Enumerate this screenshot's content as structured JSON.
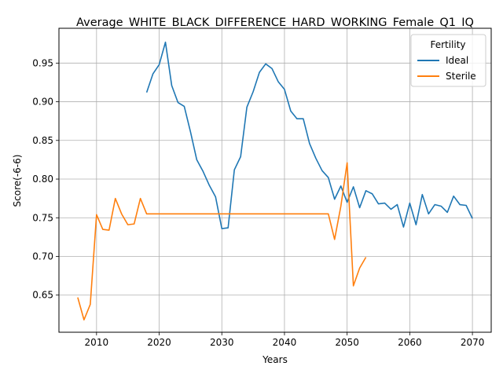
{
  "chart_data": {
    "type": "line",
    "title": "Average_WHITE_BLACK_DIFFERENCE_HARD_WORKING_Female_Q1_IQ",
    "xlabel": "Years",
    "ylabel": "Score(-6-6)",
    "xlim": [
      2004,
      2073
    ],
    "ylim": [
      0.602,
      0.995
    ],
    "xticks": [
      2010,
      2020,
      2030,
      2040,
      2050,
      2060,
      2070
    ],
    "yticks": [
      0.65,
      0.7,
      0.75,
      0.8,
      0.85,
      0.9,
      0.95
    ],
    "ytick_labels": [
      "0.65",
      "0.70",
      "0.75",
      "0.80",
      "0.85",
      "0.90",
      "0.95"
    ],
    "grid": true,
    "legend": {
      "title": "Fertility",
      "position": "top-right"
    },
    "series": [
      {
        "name": "Ideal",
        "color": "#1f77b4",
        "x": [
          2018,
          2019,
          2020,
          2021,
          2022,
          2023,
          2024,
          2025,
          2026,
          2027,
          2028,
          2029,
          2030,
          2031,
          2032,
          2033,
          2034,
          2035,
          2036,
          2037,
          2038,
          2039,
          2040,
          2041,
          2042,
          2043,
          2044,
          2045,
          2046,
          2047,
          2048,
          2049,
          2050,
          2051,
          2052,
          2053,
          2054,
          2055,
          2056,
          2057,
          2058,
          2059,
          2060,
          2061,
          2062,
          2063,
          2064,
          2065,
          2066,
          2067,
          2068,
          2069,
          2070
        ],
        "y": [
          0.912,
          0.936,
          0.948,
          0.977,
          0.921,
          0.899,
          0.894,
          0.861,
          0.825,
          0.81,
          0.792,
          0.777,
          0.736,
          0.737,
          0.812,
          0.829,
          0.893,
          0.913,
          0.938,
          0.949,
          0.943,
          0.926,
          0.916,
          0.888,
          0.878,
          0.878,
          0.846,
          0.827,
          0.811,
          0.802,
          0.774,
          0.791,
          0.77,
          0.79,
          0.763,
          0.785,
          0.781,
          0.768,
          0.769,
          0.761,
          0.767,
          0.738,
          0.769,
          0.741,
          0.78,
          0.755,
          0.767,
          0.765,
          0.757,
          0.778,
          0.767,
          0.766,
          0.749
        ]
      },
      {
        "name": "Sterile",
        "color": "#ff7f0e",
        "x": [
          2007,
          2008,
          2009,
          2010,
          2011,
          2012,
          2013,
          2014,
          2015,
          2016,
          2017,
          2018,
          2019,
          2020,
          2021,
          2022,
          2023,
          2024,
          2025,
          2026,
          2027,
          2028,
          2029,
          2030,
          2031,
          2032,
          2033,
          2034,
          2035,
          2036,
          2037,
          2038,
          2039,
          2040,
          2041,
          2042,
          2043,
          2044,
          2045,
          2046,
          2047,
          2048,
          2049,
          2050,
          2051,
          2052,
          2053
        ],
        "y": [
          0.647,
          0.618,
          0.638,
          0.754,
          0.735,
          0.734,
          0.775,
          0.755,
          0.741,
          0.742,
          0.775,
          0.755,
          0.755,
          0.755,
          0.755,
          0.755,
          0.755,
          0.755,
          0.755,
          0.755,
          0.755,
          0.755,
          0.755,
          0.755,
          0.755,
          0.755,
          0.755,
          0.755,
          0.755,
          0.755,
          0.755,
          0.755,
          0.755,
          0.755,
          0.755,
          0.755,
          0.755,
          0.755,
          0.755,
          0.755,
          0.755,
          0.722,
          0.765,
          0.821,
          0.662,
          0.685,
          0.699
        ]
      }
    ]
  }
}
